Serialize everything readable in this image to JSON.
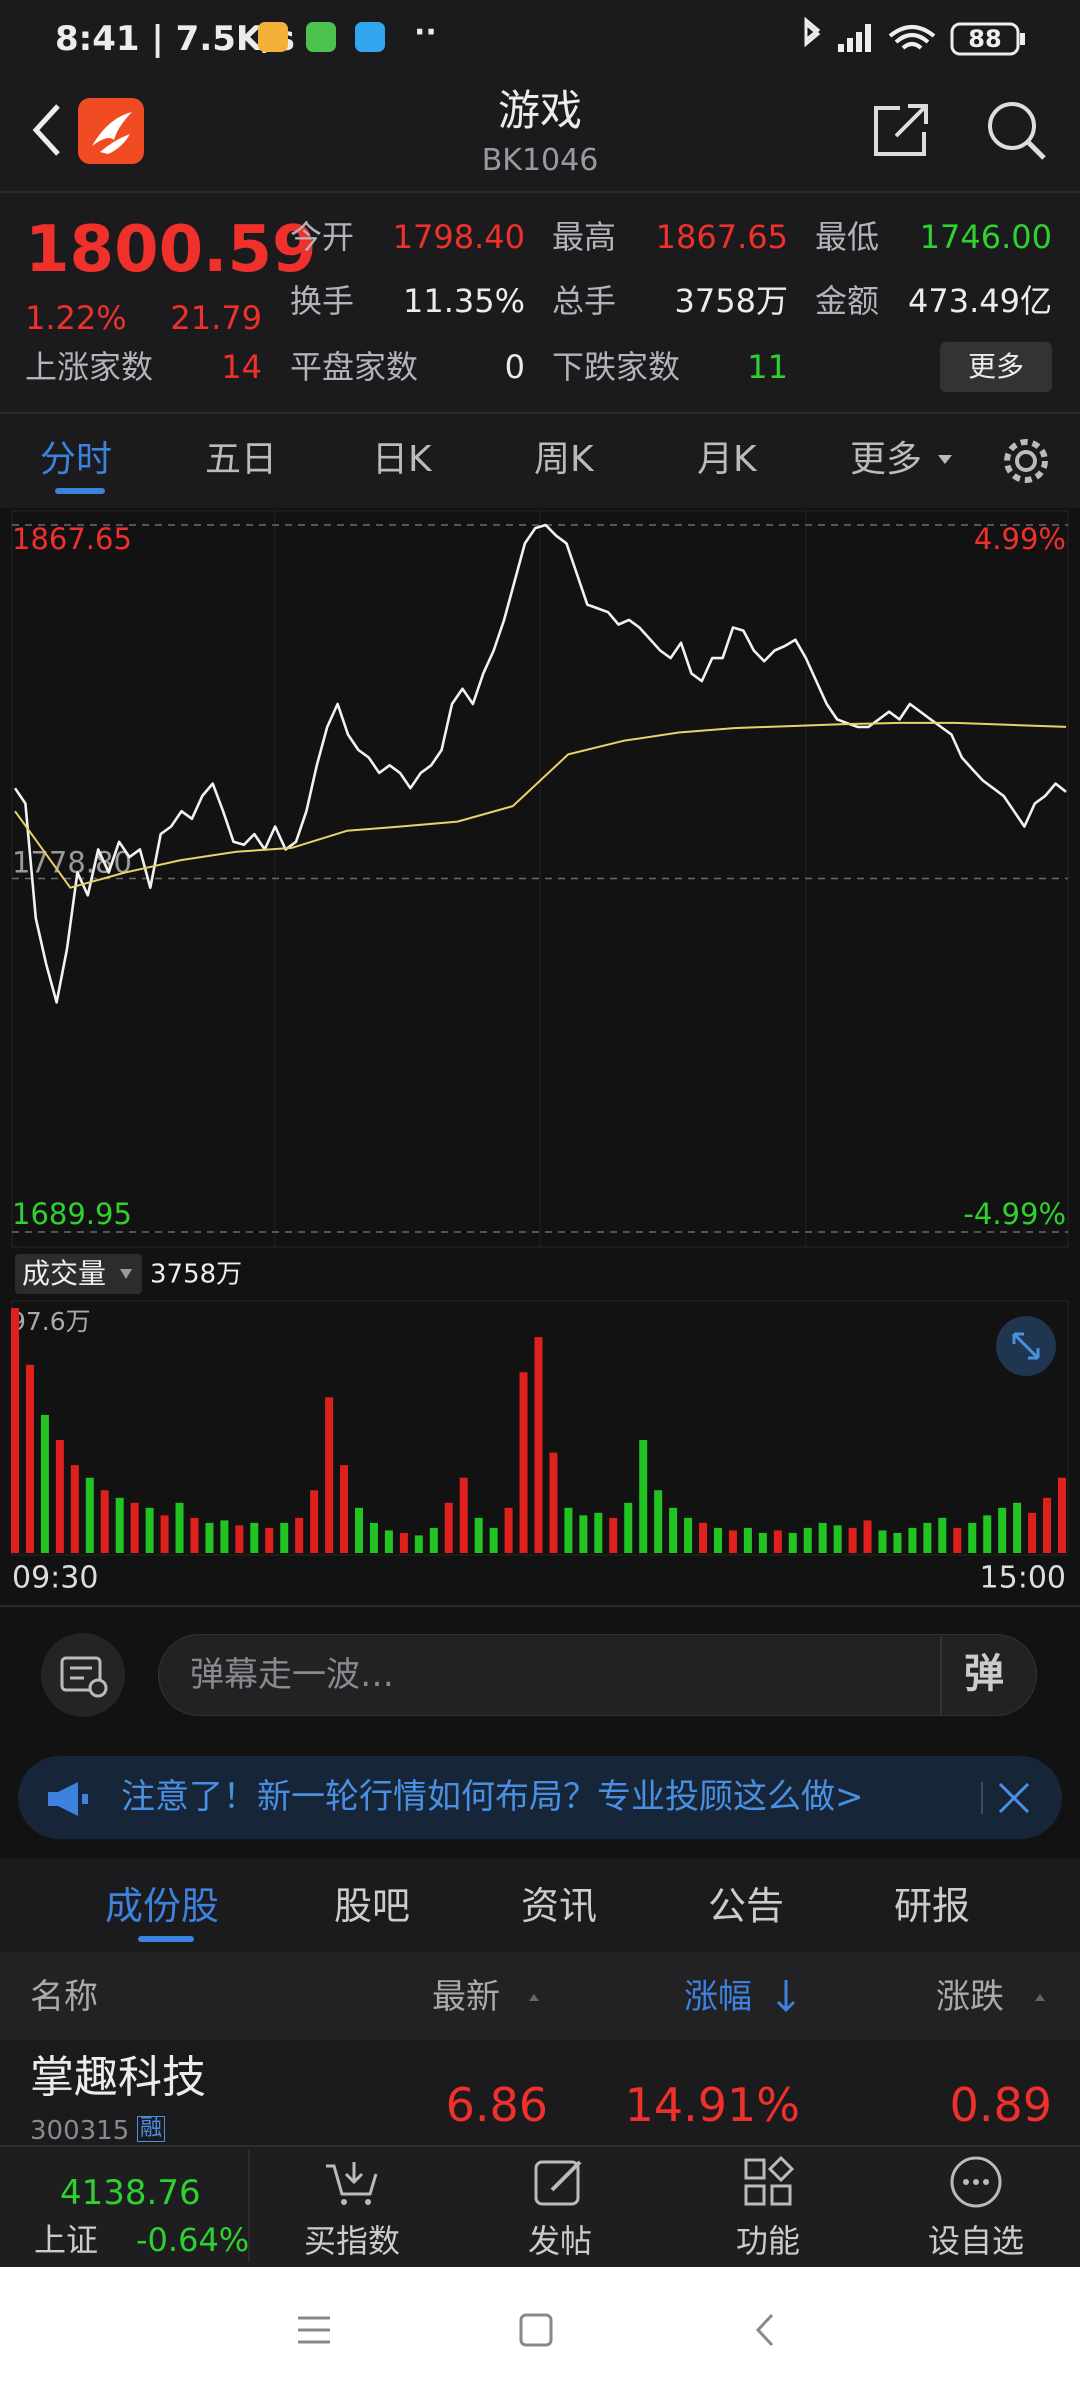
{
  "status_bar": {
    "time_speed": "8:41 | 7.5K/s",
    "battery": "88"
  },
  "header": {
    "title": "游戏",
    "code": "BK1046"
  },
  "quote": {
    "price": "1800.59",
    "change_pct": "1.22%",
    "change": "21.79",
    "more": "更多",
    "rows": [
      [
        {
          "label": "今开",
          "value": "1798.40",
          "color": "#f0302b"
        },
        {
          "label": "最高",
          "value": "1867.65",
          "color": "#f0302b"
        },
        {
          "label": "最低",
          "value": "1746.00",
          "color": "#2fd02f"
        }
      ],
      [
        {
          "label": "换手",
          "value": "11.35%",
          "color": "#ececec"
        },
        {
          "label": "总手",
          "value": "3758万",
          "color": "#ececec"
        },
        {
          "label": "金额",
          "value": "473.49亿",
          "color": "#ececec"
        }
      ],
      [
        {
          "label": "上涨家数",
          "value": "14",
          "color": "#f0302b"
        },
        {
          "label": "平盘家数",
          "value": "0",
          "color": "#ececec"
        },
        {
          "label": "下跌家数",
          "value": "11",
          "color": "#2fd02f"
        }
      ]
    ]
  },
  "tabs": [
    "分时",
    "五日",
    "日K",
    "周K",
    "月K",
    "更多"
  ],
  "chart_data": [
    {
      "type": "line",
      "ylim": [
        1689.95,
        1867.65
      ],
      "yticks": [
        1867.65,
        {
          "value": 1778.8,
          "label": "1778.80"
        },
        1689.95
      ],
      "ytick_colors": [
        "#f0302b",
        "#9a9a9a",
        "#2fd02f"
      ],
      "y2lim": [
        -4.99,
        4.99
      ],
      "y2ticks": [
        {
          "value": 4.99,
          "label": "4.99%"
        },
        {
          "value": -4.99,
          "label": "-4.99%"
        }
      ],
      "y2tick_colors": [
        "#f0302b",
        "#2fd02f"
      ],
      "series": [
        {
          "color": "#f2f2f2",
          "values": [
            1801.49,
            1797.65,
            1768.8,
            1757.26,
            1747.65,
            1761.11,
            1780.34,
            1774.57,
            1786.11,
            1780.34,
            1788.03,
            1784.19,
            1786.11,
            1776.49,
            1789.95,
            1791.88,
            1795.72,
            1793.8,
            1799.57,
            1802.65,
            1795.72,
            1788.03,
            1787.26,
            1789.95,
            1786.11,
            1791.88,
            1786.11,
            1788.03,
            1795.72,
            1807.26,
            1816.88,
            1822.65,
            1814.96,
            1811.11,
            1809.19,
            1805.34,
            1807.26,
            1805.34,
            1801.49,
            1805.34,
            1807.26,
            1811.11,
            1822.65,
            1826.49,
            1822.65,
            1830.34,
            1836.11,
            1843.8,
            1853.42,
            1863.03,
            1866.88,
            1867.65,
            1864.96,
            1863.03,
            1855.34,
            1847.65,
            1846.7,
            1845.73,
            1842.65,
            1843.8,
            1841.88,
            1839.0,
            1836.11,
            1834.19,
            1838.03,
            1830.34,
            1828.42,
            1834.19,
            1834.19,
            1841.88,
            1841.11,
            1836.11,
            1833.42,
            1836.11,
            1837.26,
            1838.8,
            1834.19,
            1828.42,
            1822.65,
            1818.8,
            1817.8,
            1816.88,
            1816.88,
            1818.8,
            1820.73,
            1818.8,
            1822.65,
            1820.73,
            1818.8,
            1816.88,
            1814.96,
            1809.19,
            1806.3,
            1803.42,
            1801.49,
            1799.57,
            1795.72,
            1791.88,
            1797.65,
            1799.57,
            1802.65,
            1800.59
          ]
        },
        {
          "color": "#e8d26a",
          "values": [
            1795.72,
            1776.49,
            1780.34,
            1783.42,
            1785.5,
            1786.5,
            1790.8,
            1791.9,
            1793.1,
            1797.0,
            1810.0,
            1813.4,
            1815.5,
            1816.6,
            1817.1,
            1817.6,
            1817.9,
            1817.9,
            1817.4,
            1816.9
          ]
        }
      ]
    },
    {
      "type": "bar",
      "label": "成交量",
      "total": "3758万",
      "ylim": [
        0,
        97.6
      ],
      "yticks": [
        {
          "value": 97.6,
          "label": "97.6万"
        }
      ],
      "x_labels": [
        "09:30",
        "15:00"
      ],
      "values": [
        97.6,
        75,
        55,
        45,
        35,
        30,
        25,
        22,
        20,
        18,
        15,
        20,
        14,
        12,
        13,
        11,
        12,
        10,
        12,
        14,
        25,
        62,
        35,
        18,
        12,
        9,
        8,
        7,
        10,
        20,
        30,
        14,
        10,
        18,
        72,
        86,
        40,
        18,
        15,
        16,
        14,
        20,
        45,
        25,
        18,
        14,
        12,
        10,
        9,
        10,
        8,
        9,
        8,
        10,
        12,
        11,
        10,
        13,
        9,
        8,
        10,
        12,
        14,
        10,
        12,
        15,
        18,
        20,
        16,
        22,
        30
      ],
      "colors": [
        "#e0201c",
        "#e0201c",
        "#22c422",
        "#e0201c",
        "#e0201c",
        "#22c422",
        "#e0201c",
        "#22c422",
        "#e0201c",
        "#22c422",
        "#e0201c",
        "#22c422",
        "#e0201c",
        "#22c422",
        "#22c422",
        "#e0201c",
        "#22c422",
        "#e0201c",
        "#22c422",
        "#e0201c",
        "#e0201c",
        "#e0201c",
        "#e0201c",
        "#22c422",
        "#22c422",
        "#22c422",
        "#e0201c",
        "#22c422",
        "#22c422",
        "#e0201c",
        "#e0201c",
        "#22c422",
        "#22c422",
        "#e0201c",
        "#e0201c",
        "#e0201c",
        "#e0201c",
        "#22c422",
        "#22c422",
        "#22c422",
        "#e0201c",
        "#22c422",
        "#22c422",
        "#22c422",
        "#22c422",
        "#22c422",
        "#e0201c",
        "#22c422",
        "#e0201c",
        "#22c422",
        "#22c422",
        "#e0201c",
        "#22c422",
        "#22c422",
        "#22c422",
        "#22c422",
        "#e0201c",
        "#e0201c",
        "#22c422",
        "#22c422",
        "#22c422",
        "#22c422",
        "#22c422",
        "#e0201c",
        "#22c422",
        "#22c422",
        "#22c422",
        "#22c422",
        "#e0201c",
        "#e0201c",
        "#e0201c"
      ]
    }
  ],
  "danmu": {
    "placeholder": "弹幕走一波…",
    "button": "弹"
  },
  "banner": {
    "text": "注意了！新一轮行情如何布局？专业投顾这么做>"
  },
  "sub_tabs": [
    "成份股",
    "股吧",
    "资讯",
    "公告",
    "研报"
  ],
  "table": {
    "columns": [
      "名称",
      "最新",
      "涨幅",
      "涨跌"
    ],
    "rows": [
      {
        "name": "掌趣科技",
        "code": "300315",
        "badge": "融",
        "price": "6.86",
        "pct": "14.91%",
        "change": "0.89"
      }
    ]
  },
  "bottom_bar": {
    "index_value": "4138.76",
    "index_name": "上证",
    "index_pct": "-0.64%",
    "items": [
      "买指数",
      "发帖",
      "功能",
      "设自选"
    ]
  }
}
